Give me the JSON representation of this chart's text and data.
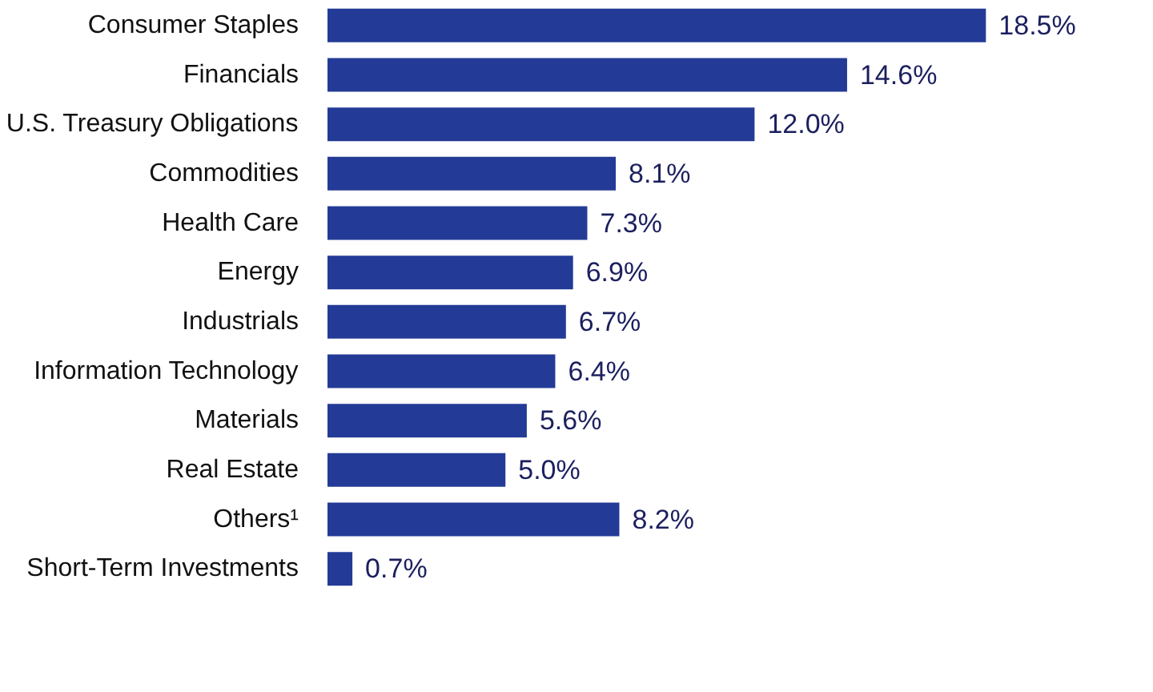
{
  "chart_data": {
    "type": "bar",
    "orientation": "horizontal",
    "categories": [
      "Consumer Staples",
      "Financials",
      "U.S. Treasury Obligations",
      "Commodities",
      "Health Care",
      "Energy",
      "Industrials",
      "Information Technology",
      "Materials",
      "Real Estate",
      "Others¹",
      "Short-Term Investments"
    ],
    "values": [
      18.5,
      14.6,
      12.0,
      8.1,
      7.3,
      6.9,
      6.7,
      6.4,
      5.6,
      5.0,
      8.2,
      0.7
    ],
    "value_labels": [
      "18.5%",
      "14.6%",
      "12.0%",
      "8.1%",
      "7.3%",
      "6.9%",
      "6.7%",
      "6.4%",
      "5.6%",
      "5.0%",
      "8.2%",
      "0.7%"
    ],
    "color": "#233b96"
  }
}
